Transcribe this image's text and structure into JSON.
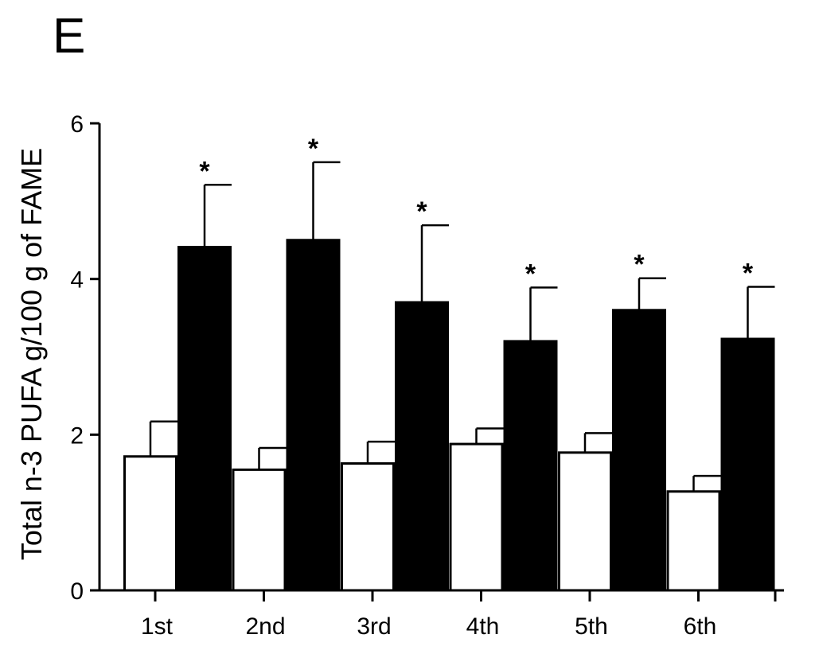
{
  "panel_label": "E",
  "chart_data": {
    "type": "bar",
    "categories": [
      "1st",
      "2nd",
      "3rd",
      "4th",
      "5th",
      "6th"
    ],
    "series": [
      {
        "fill": "#ffffff",
        "values": [
          1.72,
          1.55,
          1.63,
          1.88,
          1.77,
          1.27
        ],
        "errors": [
          0.45,
          0.28,
          0.28,
          0.2,
          0.25,
          0.2
        ]
      },
      {
        "fill": "#000000",
        "values": [
          4.41,
          4.5,
          3.7,
          3.2,
          3.6,
          3.23
        ],
        "errors": [
          0.8,
          1.0,
          0.99,
          0.69,
          0.41,
          0.67
        ]
      }
    ],
    "significance": [
      "*",
      "*",
      "*",
      "*",
      "*",
      "*"
    ],
    "xlabel": "",
    "ylabel": "Total n-3 PUFA g/100 g of FAME",
    "ylim": [
      0,
      6
    ],
    "yticks": [
      0,
      2,
      4,
      6
    ],
    "grid": false,
    "legend": "none"
  }
}
